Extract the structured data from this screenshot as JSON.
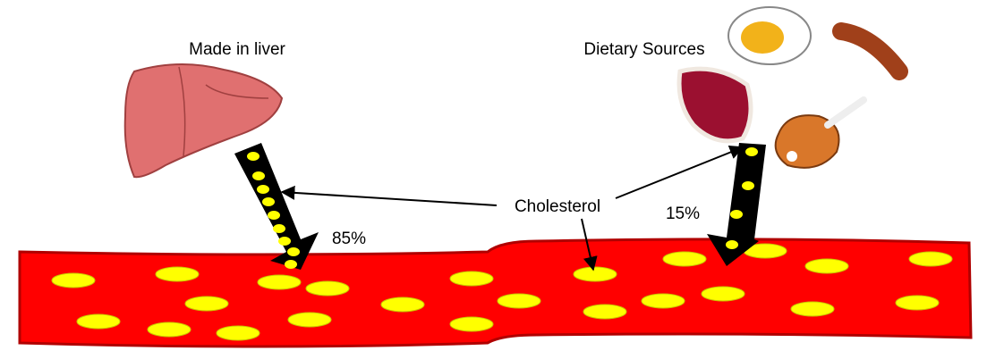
{
  "labels": {
    "liver": "Made in liver",
    "dietary": "Dietary Sources",
    "cholesterol": "Cholesterol",
    "liver_share": "85%",
    "dietary_share": "15%"
  }
}
